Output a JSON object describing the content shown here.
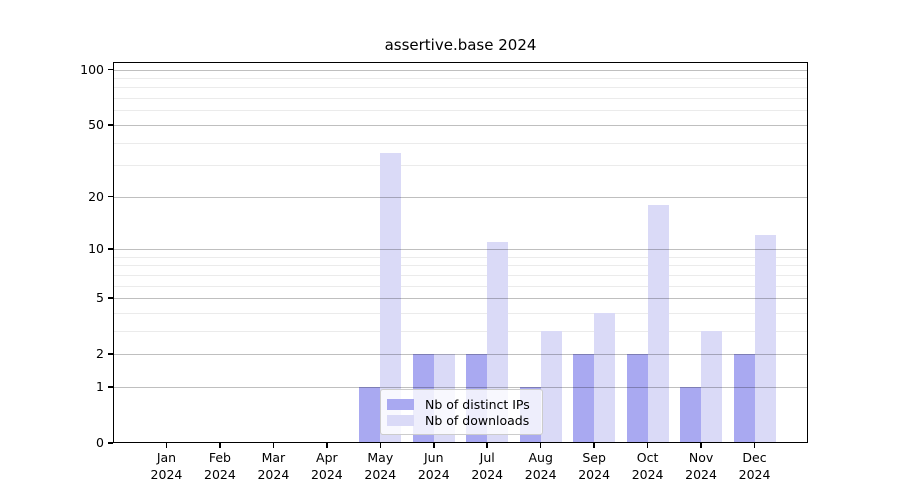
{
  "chart_data": {
    "type": "bar",
    "title": "assertive.base 2024",
    "year": "2024",
    "months": [
      "Jan",
      "Feb",
      "Mar",
      "Apr",
      "May",
      "Jun",
      "Jul",
      "Aug",
      "Sep",
      "Oct",
      "Nov",
      "Dec"
    ],
    "categories": [
      "Jan 2024",
      "Feb 2024",
      "Mar 2024",
      "Apr 2024",
      "May 2024",
      "Jun 2024",
      "Jul 2024",
      "Aug 2024",
      "Sep 2024",
      "Oct 2024",
      "Nov 2024",
      "Dec 2024"
    ],
    "series": [
      {
        "name": "Nb of distinct IPs",
        "color": "#a9a9f1",
        "values": [
          0,
          0,
          0,
          0,
          1,
          2,
          2,
          1,
          2,
          2,
          1,
          2
        ]
      },
      {
        "name": "Nb of downloads",
        "color": "#dadaf7",
        "values": [
          0,
          0,
          0,
          0,
          35,
          2,
          11,
          3,
          4,
          18,
          3,
          12
        ]
      }
    ],
    "xlabel": "",
    "ylabel": "",
    "yscale": "log1p",
    "yticks": [
      0,
      1,
      2,
      5,
      10,
      20,
      50,
      100
    ],
    "yticks_minor": [
      3,
      4,
      6,
      7,
      8,
      9,
      30,
      40,
      60,
      70,
      80,
      90
    ],
    "ylim": [
      0,
      110
    ],
    "grid": true,
    "legend_position": "lower-center"
  },
  "colors": {
    "major_grid": "rgba(0,0,0,0.25)",
    "minor_grid": "rgba(0,0,0,0.08)",
    "spine": "#000000",
    "legend_border": "#cccccc",
    "legend_bg": "rgba(255,255,255,0.8)"
  }
}
